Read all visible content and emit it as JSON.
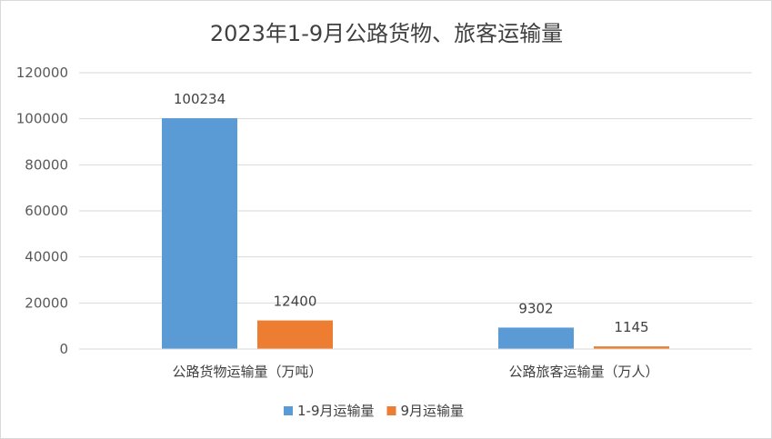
{
  "chart_data": {
    "type": "bar",
    "title": "2023年1-9月公路货物、旅客运输量",
    "categories": [
      "公路货物运输量（万吨）",
      "公路旅客运输量（万人）"
    ],
    "series": [
      {
        "name": "1-9月运输量",
        "color": "#5b9bd5",
        "values": [
          100234,
          9302
        ]
      },
      {
        "name": "9月运输量",
        "color": "#ed7d31",
        "values": [
          12400,
          1145
        ]
      }
    ],
    "ylim": [
      0,
      120000
    ],
    "yticks": [
      0,
      20000,
      40000,
      60000,
      80000,
      100000,
      120000
    ],
    "grid": true,
    "legend": "bottom"
  }
}
